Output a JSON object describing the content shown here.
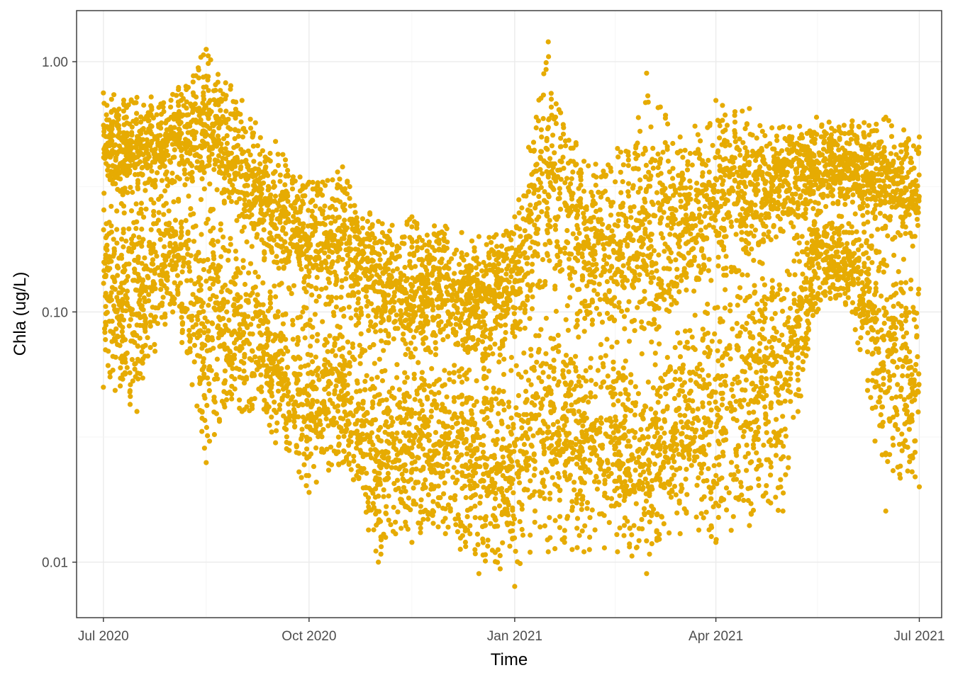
{
  "chart_data": {
    "type": "scatter",
    "title": "",
    "xlabel": "Time",
    "ylabel": "Chla (ug/L)",
    "x_axis": {
      "type": "date",
      "range": [
        "2020-06-19",
        "2021-07-11"
      ],
      "ticks": [
        {
          "date": "2020-07-01",
          "label": "Jul 2020"
        },
        {
          "date": "2020-10-01",
          "label": "Oct 2020"
        },
        {
          "date": "2021-01-01",
          "label": "Jan 2021"
        },
        {
          "date": "2021-04-01",
          "label": "Apr 2021"
        },
        {
          "date": "2021-07-01",
          "label": "Jul 2021"
        }
      ]
    },
    "y_axis": {
      "scale": "log10",
      "range": [
        0.006,
        1.6
      ],
      "ticks": [
        {
          "value": 0.01,
          "label": "0.01"
        },
        {
          "value": 0.1,
          "label": "0.10"
        },
        {
          "value": 1.0,
          "label": "1.00"
        }
      ]
    },
    "grid": true,
    "legend": "none",
    "point_color": "#E6AB02",
    "series": [
      {
        "x": [
          "2020-07-01",
          "2020-07-16",
          "2020-08-01",
          "2020-08-16",
          "2020-09-01",
          "2020-09-16",
          "2020-10-01",
          "2020-10-16",
          "2020-11-01",
          "2020-11-16",
          "2020-12-01",
          "2020-12-16",
          "2021-01-01",
          "2021-01-16",
          "2021-02-01",
          "2021-02-16",
          "2021-03-01",
          "2021-03-16",
          "2021-04-01",
          "2021-04-16",
          "2021-05-01",
          "2021-05-16",
          "2021-06-01",
          "2021-06-16",
          "2021-07-01"
        ],
        "y_max": [
          0.75,
          0.72,
          0.74,
          1.12,
          0.7,
          0.48,
          0.33,
          0.38,
          0.23,
          0.24,
          0.22,
          0.2,
          0.24,
          1.2,
          0.4,
          0.45,
          0.9,
          0.5,
          0.7,
          0.65,
          0.55,
          0.6,
          0.58,
          0.6,
          0.5
        ],
        "y_mid": [
          0.3,
          0.28,
          0.3,
          0.3,
          0.2,
          0.12,
          0.1,
          0.09,
          0.07,
          0.06,
          0.07,
          0.06,
          0.07,
          0.12,
          0.08,
          0.07,
          0.06,
          0.1,
          0.12,
          0.15,
          0.2,
          0.25,
          0.25,
          0.2,
          0.15
        ],
        "y_min": [
          0.05,
          0.04,
          0.1,
          0.025,
          0.04,
          0.03,
          0.019,
          0.025,
          0.01,
          0.012,
          0.013,
          0.009,
          0.008,
          0.011,
          0.011,
          0.011,
          0.009,
          0.013,
          0.012,
          0.014,
          0.016,
          0.1,
          0.1,
          0.016,
          0.02
        ]
      }
    ]
  }
}
